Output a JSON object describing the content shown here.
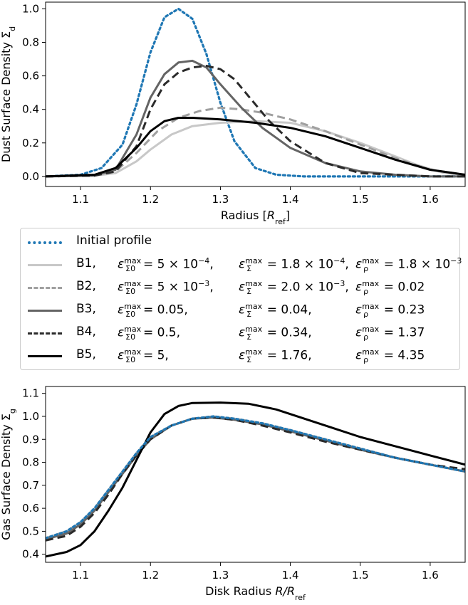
{
  "chart_data": [
    {
      "type": "line",
      "xlabel": "Radius [R_ref]",
      "ylabel": "Dust Surface Density Σ_d",
      "xlim": [
        1.05,
        1.65
      ],
      "ylim": [
        -0.06,
        1.04
      ],
      "xticks": [
        "1.1",
        "1.2",
        "1.3",
        "1.4",
        "1.5",
        "1.6"
      ],
      "yticks": [
        "0.0",
        "0.2",
        "0.4",
        "0.6",
        "0.8",
        "1.0"
      ],
      "series": [
        {
          "name": "Initial profile",
          "color": "#1f77b4",
          "style": "dotted",
          "x": [
            1.05,
            1.1,
            1.13,
            1.16,
            1.18,
            1.2,
            1.22,
            1.24,
            1.26,
            1.28,
            1.3,
            1.32,
            1.35,
            1.38,
            1.42,
            1.65
          ],
          "y": [
            0.0,
            0.01,
            0.05,
            0.19,
            0.43,
            0.74,
            0.95,
            1.0,
            0.94,
            0.73,
            0.44,
            0.21,
            0.05,
            0.01,
            0.0,
            0.0
          ]
        },
        {
          "name": "B1",
          "color": "#c8c8c8",
          "style": "solid",
          "x": [
            1.05,
            1.12,
            1.15,
            1.18,
            1.2,
            1.23,
            1.26,
            1.3,
            1.35,
            1.4,
            1.45,
            1.5,
            1.55,
            1.58,
            1.62,
            1.65
          ],
          "y": [
            0.0,
            0.005,
            0.02,
            0.09,
            0.16,
            0.25,
            0.3,
            0.32,
            0.33,
            0.32,
            0.27,
            0.2,
            0.12,
            0.07,
            0.02,
            0.01
          ]
        },
        {
          "name": "B2",
          "color": "#a0a0a0",
          "style": "dashed",
          "x": [
            1.05,
            1.12,
            1.15,
            1.18,
            1.21,
            1.24,
            1.27,
            1.3,
            1.33,
            1.36,
            1.4,
            1.45,
            1.5,
            1.55,
            1.6,
            1.65
          ],
          "y": [
            0.0,
            0.005,
            0.03,
            0.14,
            0.27,
            0.35,
            0.39,
            0.41,
            0.4,
            0.38,
            0.34,
            0.27,
            0.19,
            0.11,
            0.04,
            0.01
          ]
        },
        {
          "name": "B3",
          "color": "#646464",
          "style": "solid",
          "x": [
            1.05,
            1.12,
            1.15,
            1.18,
            1.2,
            1.22,
            1.24,
            1.26,
            1.28,
            1.3,
            1.33,
            1.36,
            1.4,
            1.45,
            1.5,
            1.55,
            1.6,
            1.65
          ],
          "y": [
            0.0,
            0.005,
            0.04,
            0.25,
            0.47,
            0.61,
            0.68,
            0.69,
            0.65,
            0.55,
            0.41,
            0.29,
            0.17,
            0.08,
            0.03,
            0.01,
            0.0,
            0.0
          ]
        },
        {
          "name": "B4",
          "color": "#2a2a2a",
          "style": "dashed",
          "x": [
            1.05,
            1.12,
            1.15,
            1.18,
            1.2,
            1.22,
            1.24,
            1.26,
            1.28,
            1.3,
            1.32,
            1.34,
            1.37,
            1.4,
            1.45,
            1.5,
            1.55,
            1.6,
            1.65
          ],
          "y": [
            0.0,
            0.005,
            0.03,
            0.18,
            0.4,
            0.55,
            0.62,
            0.65,
            0.66,
            0.64,
            0.58,
            0.48,
            0.33,
            0.21,
            0.08,
            0.02,
            0.01,
            0.0,
            0.0
          ]
        },
        {
          "name": "B5",
          "color": "#000000",
          "style": "solid",
          "x": [
            1.05,
            1.12,
            1.15,
            1.18,
            1.2,
            1.22,
            1.24,
            1.26,
            1.3,
            1.35,
            1.4,
            1.45,
            1.5,
            1.55,
            1.6,
            1.65
          ],
          "y": [
            0.0,
            0.01,
            0.05,
            0.17,
            0.27,
            0.33,
            0.35,
            0.35,
            0.34,
            0.32,
            0.29,
            0.24,
            0.17,
            0.1,
            0.04,
            0.01
          ]
        }
      ]
    },
    {
      "type": "line",
      "xlabel": "Disk Radius R/R_ref",
      "ylabel": "Gas Surface Density Σ_g",
      "xlim": [
        1.05,
        1.65
      ],
      "ylim": [
        0.365,
        1.13
      ],
      "xticks": [
        "1.1",
        "1.2",
        "1.3",
        "1.4",
        "1.5",
        "1.6"
      ],
      "yticks": [
        "0.4",
        "0.5",
        "0.6",
        "0.7",
        "0.8",
        "0.9",
        "1.0",
        "1.1"
      ],
      "series": [
        {
          "name": "Initial profile",
          "color": "#1f77b4",
          "style": "dotted",
          "x": [
            1.05,
            1.08,
            1.1,
            1.12,
            1.14,
            1.16,
            1.18,
            1.2,
            1.23,
            1.26,
            1.29,
            1.32,
            1.36,
            1.4,
            1.45,
            1.5,
            1.55,
            1.6,
            1.65
          ],
          "y": [
            0.47,
            0.5,
            0.54,
            0.6,
            0.68,
            0.76,
            0.84,
            0.91,
            0.96,
            0.99,
            1.0,
            0.99,
            0.97,
            0.94,
            0.9,
            0.86,
            0.82,
            0.79,
            0.76
          ]
        },
        {
          "name": "B1",
          "color": "#c8c8c8",
          "style": "solid",
          "x": [
            1.05,
            1.08,
            1.1,
            1.12,
            1.14,
            1.16,
            1.18,
            1.2,
            1.23,
            1.26,
            1.29,
            1.32,
            1.36,
            1.4,
            1.45,
            1.5,
            1.55,
            1.6,
            1.65
          ],
          "y": [
            0.47,
            0.5,
            0.54,
            0.6,
            0.68,
            0.76,
            0.84,
            0.91,
            0.96,
            0.99,
            1.0,
            0.99,
            0.97,
            0.94,
            0.9,
            0.86,
            0.82,
            0.79,
            0.76
          ]
        },
        {
          "name": "B2",
          "color": "#a0a0a0",
          "style": "dashed",
          "x": [
            1.05,
            1.08,
            1.1,
            1.12,
            1.14,
            1.16,
            1.18,
            1.2,
            1.23,
            1.26,
            1.29,
            1.32,
            1.36,
            1.4,
            1.45,
            1.5,
            1.55,
            1.6,
            1.65
          ],
          "y": [
            0.47,
            0.5,
            0.54,
            0.6,
            0.68,
            0.76,
            0.84,
            0.91,
            0.96,
            0.99,
            1.0,
            0.99,
            0.97,
            0.94,
            0.9,
            0.86,
            0.82,
            0.79,
            0.76
          ]
        },
        {
          "name": "B3",
          "color": "#646464",
          "style": "solid",
          "x": [
            1.05,
            1.08,
            1.1,
            1.12,
            1.14,
            1.16,
            1.18,
            1.2,
            1.23,
            1.26,
            1.29,
            1.32,
            1.36,
            1.4,
            1.45,
            1.5,
            1.55,
            1.6,
            1.65
          ],
          "y": [
            0.465,
            0.49,
            0.53,
            0.59,
            0.67,
            0.75,
            0.83,
            0.9,
            0.96,
            0.99,
            0.995,
            0.985,
            0.965,
            0.935,
            0.895,
            0.855,
            0.82,
            0.79,
            0.76
          ]
        },
        {
          "name": "B4",
          "color": "#2a2a2a",
          "style": "dashed",
          "x": [
            1.05,
            1.08,
            1.1,
            1.12,
            1.14,
            1.16,
            1.18,
            1.2,
            1.23,
            1.26,
            1.29,
            1.32,
            1.36,
            1.4,
            1.45,
            1.5,
            1.55,
            1.6,
            1.65
          ],
          "y": [
            0.46,
            0.48,
            0.52,
            0.58,
            0.66,
            0.75,
            0.83,
            0.9,
            0.96,
            0.99,
            0.995,
            0.985,
            0.96,
            0.93,
            0.89,
            0.855,
            0.82,
            0.79,
            0.77
          ]
        },
        {
          "name": "B5",
          "color": "#000000",
          "style": "solid",
          "x": [
            1.05,
            1.08,
            1.1,
            1.12,
            1.14,
            1.16,
            1.18,
            1.2,
            1.22,
            1.24,
            1.26,
            1.3,
            1.34,
            1.38,
            1.42,
            1.46,
            1.5,
            1.55,
            1.6,
            1.65
          ],
          "y": [
            0.39,
            0.41,
            0.44,
            0.5,
            0.59,
            0.69,
            0.81,
            0.93,
            1.01,
            1.045,
            1.058,
            1.06,
            1.055,
            1.03,
            0.99,
            0.95,
            0.91,
            0.87,
            0.83,
            0.79
          ]
        }
      ]
    }
  ],
  "legend": [
    {
      "label": "Initial profile",
      "color": "#1f77b4",
      "style": "dotted"
    },
    {
      "label": "B1,",
      "color": "#c8c8c8",
      "style": "solid",
      "e0": "= 5 × 10",
      "e0exp": "−4",
      "es": "= 1.8 × 10",
      "esexp": "−4",
      "er": "= 1.8 × 10",
      "erexp": "−3"
    },
    {
      "label": "B2,",
      "color": "#a0a0a0",
      "style": "dashed",
      "e0": "= 5 × 10",
      "e0exp": "−3",
      "es": "= 2.0 × 10",
      "esexp": "−3",
      "er": "= 0.02",
      "erexp": ""
    },
    {
      "label": "B3,",
      "color": "#646464",
      "style": "solid",
      "e0": "= 0.05,",
      "e0exp": "",
      "es": "= 0.04,",
      "esexp": "",
      "er": "= 0.23",
      "erexp": ""
    },
    {
      "label": "B4,",
      "color": "#2a2a2a",
      "style": "dashed",
      "e0": "= 0.5,",
      "e0exp": "",
      "es": "= 0.34,",
      "esexp": "",
      "er": "= 1.37",
      "erexp": ""
    },
    {
      "label": "B5,",
      "color": "#000000",
      "style": "solid",
      "e0": "= 5,",
      "e0exp": "",
      "es": "= 1.76,",
      "esexp": "",
      "er": "= 4.35",
      "erexp": ""
    }
  ]
}
